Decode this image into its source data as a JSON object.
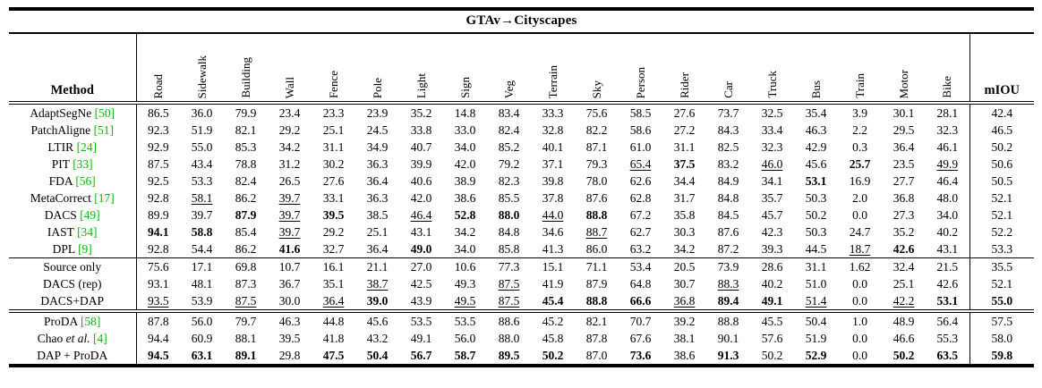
{
  "title": "GTAv→Cityscapes",
  "method_header": "Method",
  "miou_header": "mIOU",
  "class_columns": [
    "Road",
    "Sidewalk",
    "Building",
    "Wall",
    "Fence",
    "Pole",
    "Light",
    "Sign",
    "Veg",
    "Terrain",
    "Sky",
    "Person",
    "Rider",
    "Car",
    "Truck",
    "Bus",
    "Train",
    "Motor",
    "Bike"
  ],
  "cite_color": "#00bf00",
  "sections": [
    {
      "rows": [
        {
          "method": "AdaptSegNe",
          "cite": "50",
          "values": [
            "86.5",
            "36.0",
            "79.9",
            "23.4",
            "23.3",
            "23.9",
            "35.2",
            "14.8",
            "83.4",
            "33.3",
            "75.6",
            "58.5",
            "27.6",
            "73.7",
            "32.5",
            "35.4",
            "3.9",
            "30.1",
            "28.1",
            "42.4"
          ]
        },
        {
          "method": "PatchAligne",
          "cite": "51",
          "values": [
            "92.3",
            "51.9",
            "82.1",
            "29.2",
            "25.1",
            "24.5",
            "33.8",
            "33.0",
            "82.4",
            "32.8",
            "82.2",
            "58.6",
            "27.2",
            "84.3",
            "33.4",
            "46.3",
            "2.2",
            "29.5",
            "32.3",
            "46.5"
          ]
        },
        {
          "method": "LTIR",
          "cite": "24",
          "values": [
            "92.9",
            "55.0",
            "85.3",
            "34.2",
            "31.1",
            "34.9",
            "40.7",
            "34.0",
            "85.2",
            "40.1",
            "87.1",
            "61.0",
            "31.1",
            "82.5",
            "32.3",
            "42.9",
            "0.3",
            "36.4",
            "46.1",
            "50.2"
          ]
        },
        {
          "method": "PIT",
          "cite": "33",
          "values": [
            "87.5",
            "43.4",
            "78.8",
            "31.2",
            "30.2",
            "36.3",
            "39.9",
            "42.0",
            "79.2",
            "37.1",
            "79.3",
            "__65.4__",
            "**37.5**",
            "83.2",
            "__46.0__",
            "45.6",
            "**25.7**",
            "23.5",
            "__49.9__",
            "50.6"
          ]
        },
        {
          "method": "FDA",
          "cite": "56",
          "values": [
            "92.5",
            "53.3",
            "82.4",
            "26.5",
            "27.6",
            "36.4",
            "40.6",
            "38.9",
            "82.3",
            "39.8",
            "78.0",
            "62.6",
            "34.4",
            "84.9",
            "34.1",
            "**53.1**",
            "16.9",
            "27.7",
            "46.4",
            "50.5"
          ]
        },
        {
          "method": "MetaCorrect",
          "cite": "17",
          "values": [
            "92.8",
            "__58.1__",
            "86.2",
            "__39.7__",
            "33.1",
            "36.3",
            "42.0",
            "38.6",
            "85.5",
            "37.8",
            "87.6",
            "62.8",
            "31.7",
            "84.8",
            "35.7",
            "50.3",
            "2.0",
            "36.8",
            "48.0",
            "52.1"
          ]
        },
        {
          "method": "DACS",
          "cite": "49",
          "values": [
            "89.9",
            "39.7",
            "**87.9**",
            "__39.7__",
            "**39.5**",
            "38.5",
            "__46.4__",
            "**52.8**",
            "**88.0**",
            "__44.0__",
            "**88.8**",
            "67.2",
            "35.8",
            "84.5",
            "45.7",
            "50.2",
            "0.0",
            "27.3",
            "34.0",
            "52.1"
          ]
        },
        {
          "method": "IAST",
          "cite": "34",
          "values": [
            "**94.1**",
            "**58.8**",
            "85.4",
            "__39.7__",
            "29.2",
            "25.1",
            "43.1",
            "34.2",
            "84.8",
            "34.6",
            "__88.7__",
            "62.7",
            "30.3",
            "87.6",
            "42.3",
            "50.3",
            "24.7",
            "35.2",
            "40.2",
            "52.2"
          ]
        },
        {
          "method": "DPL",
          "cite": "9",
          "values": [
            "92.8",
            "54.4",
            "86.2",
            "**41.6**",
            "32.7",
            "36.4",
            "**49.0**",
            "34.0",
            "85.8",
            "41.3",
            "86.0",
            "63.2",
            "34.2",
            "87.2",
            "39.3",
            "44.5",
            "__18.7__",
            "**42.6**",
            "43.1",
            "53.3"
          ]
        }
      ]
    },
    {
      "rows": [
        {
          "method": "Source only",
          "values": [
            "75.6",
            "17.1",
            "69.8",
            "10.7",
            "16.1",
            "21.1",
            "27.0",
            "10.6",
            "77.3",
            "15.1",
            "71.1",
            "53.4",
            "20.5",
            "73.9",
            "28.6",
            "31.1",
            "1.62",
            "32.4",
            "21.5",
            "35.5"
          ]
        },
        {
          "method": "DACS (rep)",
          "values": [
            "93.1",
            "48.1",
            "87.3",
            "36.7",
            "35.1",
            "__38.7__",
            "42.5",
            "49.3",
            "__87.5__",
            "41.9",
            "87.9",
            "64.8",
            "30.7",
            "__88.3__",
            "40.2",
            "51.0",
            "0.0",
            "25.1",
            "42.6",
            "52.1"
          ]
        },
        {
          "method": "DACS+DAP",
          "values": [
            "__93.5__",
            "53.9",
            "__87.5__",
            "30.0",
            "__36.4__",
            "**39.0**",
            "43.9",
            "__49.5__",
            "__87.5__",
            "**45.4**",
            "**88.8**",
            "**66.6**",
            "__36.8__",
            "**89.4**",
            "**49.1**",
            "__51.4__",
            "0.0",
            "__42.2__",
            "**53.1**",
            "**55.0**"
          ]
        }
      ]
    },
    {
      "rows": [
        {
          "method": "ProDA",
          "cite": "58",
          "values": [
            "87.8",
            "56.0",
            "79.7",
            "46.3",
            "44.8",
            "45.6",
            "53.5",
            "53.5",
            "88.6",
            "45.2",
            "82.1",
            "70.7",
            "39.2",
            "88.8",
            "45.5",
            "50.4",
            "1.0",
            "48.9",
            "56.4",
            "57.5"
          ]
        },
        {
          "method": "Chao",
          "italic": "et al.",
          "cite": "4",
          "values": [
            "94.4",
            "60.9",
            "88.1",
            "39.5",
            "41.8",
            "43.2",
            "49.1",
            "56.0",
            "88.0",
            "45.8",
            "87.8",
            "67.6",
            "38.1",
            "90.1",
            "57.6",
            "51.9",
            "0.0",
            "46.6",
            "55.3",
            "58.0"
          ]
        },
        {
          "method": "DAP + ProDA",
          "values": [
            "**94.5**",
            "**63.1**",
            "**89.1**",
            "29.8",
            "**47.5**",
            "**50.4**",
            "**56.7**",
            "**58.7**",
            "**89.5**",
            "**50.2**",
            "87.0",
            "**73.6**",
            "38.6",
            "**91.3**",
            "50.2",
            "**52.9**",
            "0.0",
            "**50.2**",
            "**63.5**",
            "**59.8**"
          ]
        }
      ]
    }
  ]
}
